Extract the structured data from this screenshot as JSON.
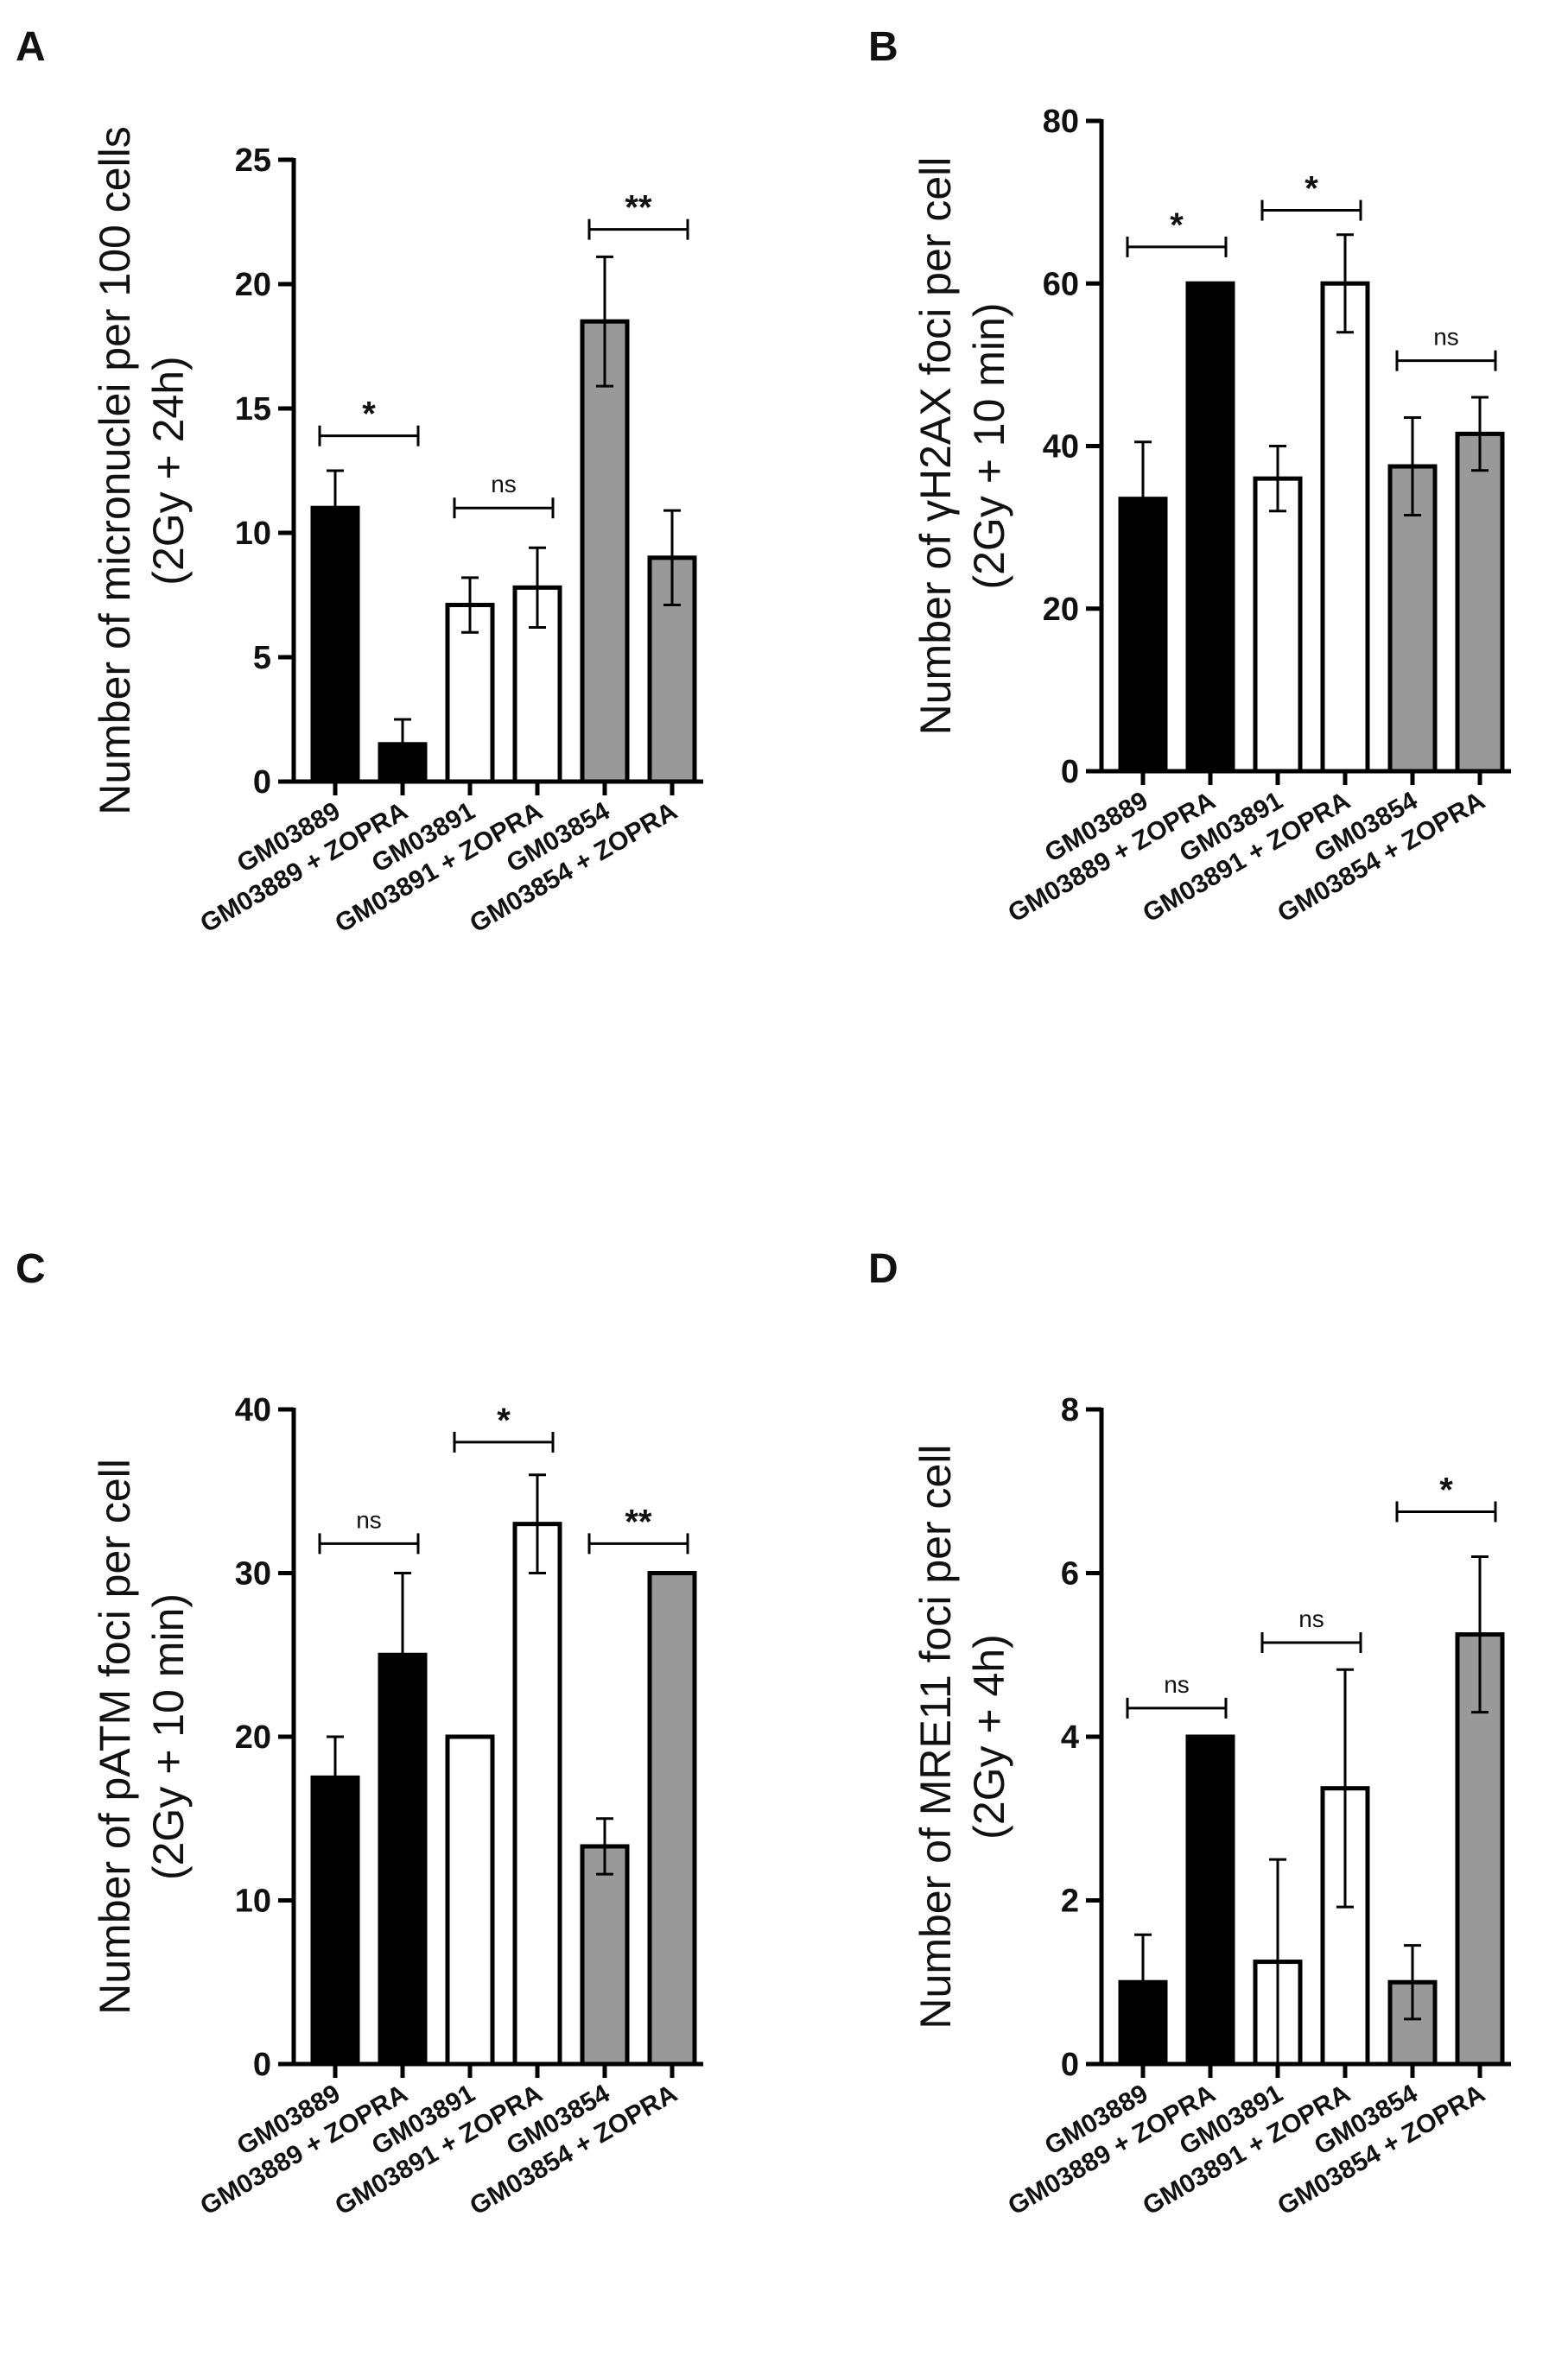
{
  "figure": {
    "series_colors": {
      "GM03889": "#000000",
      "GM03891": "#ffffff",
      "GM03854": "#999999"
    },
    "bar_stroke": "#000000"
  },
  "chart_data": [
    {
      "panel": "A",
      "type": "bar",
      "ylabel": [
        "Number of micronuclei per 100 cells",
        "(2Gy + 24h)"
      ],
      "ylim": [
        0,
        25
      ],
      "yticks": [
        0,
        5,
        10,
        15,
        20,
        25
      ],
      "categories": [
        "GM03889",
        "GM03889 + ZOPRA",
        "GM03891",
        "GM03891 + ZOPRA",
        "GM03854",
        "GM03854 + ZOPRA"
      ],
      "groups": [
        "GM03889",
        "GM03889",
        "GM03891",
        "GM03891",
        "GM03854",
        "GM03854"
      ],
      "values": [
        11,
        1.5,
        7.1,
        7.8,
        18.5,
        9
      ],
      "errors": [
        1.5,
        1.0,
        1.1,
        1.6,
        2.6,
        1.9
      ],
      "significance": [
        {
          "from": 0,
          "to": 1,
          "label": "*",
          "y": 13.9
        },
        {
          "from": 2,
          "to": 3,
          "label": "ns",
          "y": 11
        },
        {
          "from": 4,
          "to": 5,
          "label": "**",
          "y": 22.2
        }
      ]
    },
    {
      "panel": "B",
      "type": "bar",
      "ylabel": [
        "Number of γH2AX foci per cell",
        "(2Gy + 10 min)"
      ],
      "ylim": [
        0,
        80
      ],
      "yticks": [
        0,
        20,
        40,
        60,
        80
      ],
      "categories": [
        "GM03889",
        "GM03889 + ZOPRA",
        "GM03891",
        "GM03891 + ZOPRA",
        "GM03854",
        "GM03854 + ZOPRA"
      ],
      "groups": [
        "GM03889",
        "GM03889",
        "GM03891",
        "GM03891",
        "GM03854",
        "GM03854"
      ],
      "values": [
        33.5,
        60,
        36,
        60,
        37.5,
        41.5
      ],
      "errors": [
        7,
        0,
        4,
        6,
        6,
        4.5
      ],
      "significance": [
        {
          "from": 0,
          "to": 1,
          "label": "*",
          "y": 64.5
        },
        {
          "from": 2,
          "to": 3,
          "label": "*",
          "y": 69
        },
        {
          "from": 4,
          "to": 5,
          "label": "ns",
          "y": 50.5
        }
      ]
    },
    {
      "panel": "C",
      "type": "bar",
      "ylabel": [
        "Number of pATM foci per cell",
        "(2Gy + 10 min)"
      ],
      "ylim": [
        0,
        40
      ],
      "yticks": [
        0,
        10,
        20,
        30,
        40
      ],
      "categories": [
        "GM03889",
        "GM03889 + ZOPRA",
        "GM03891",
        "GM03891 + ZOPRA",
        "GM03854",
        "GM03854 + ZOPRA"
      ],
      "groups": [
        "GM03889",
        "GM03889",
        "GM03891",
        "GM03891",
        "GM03854",
        "GM03854"
      ],
      "values": [
        17.5,
        25,
        20,
        33,
        13.3,
        30
      ],
      "errors": [
        2.5,
        5,
        0,
        3,
        1.7,
        0
      ],
      "significance": [
        {
          "from": 0,
          "to": 1,
          "label": "ns",
          "y": 31.8
        },
        {
          "from": 2,
          "to": 3,
          "label": "*",
          "y": 38
        },
        {
          "from": 4,
          "to": 5,
          "label": "**",
          "y": 31.8
        }
      ]
    },
    {
      "panel": "D",
      "type": "bar",
      "ylabel": [
        "Number of MRE11 foci per cell",
        "(2Gy + 4h)"
      ],
      "ylim": [
        0,
        8
      ],
      "yticks": [
        0,
        2,
        4,
        6,
        8
      ],
      "categories": [
        "GM03889",
        "GM03889 + ZOPRA",
        "GM03891",
        "GM03891 + ZOPRA",
        "GM03854",
        "GM03854 + ZOPRA"
      ],
      "groups": [
        "GM03889",
        "GM03889",
        "GM03891",
        "GM03891",
        "GM03854",
        "GM03854"
      ],
      "values": [
        1,
        4,
        1.25,
        3.37,
        1,
        5.25
      ],
      "errors": [
        0.58,
        0,
        1.25,
        1.45,
        0.45,
        0.95
      ],
      "significance": [
        {
          "from": 0,
          "to": 1,
          "label": "ns",
          "y": 4.35
        },
        {
          "from": 2,
          "to": 3,
          "label": "ns",
          "y": 5.15
        },
        {
          "from": 4,
          "to": 5,
          "label": "*",
          "y": 6.75
        }
      ]
    }
  ]
}
